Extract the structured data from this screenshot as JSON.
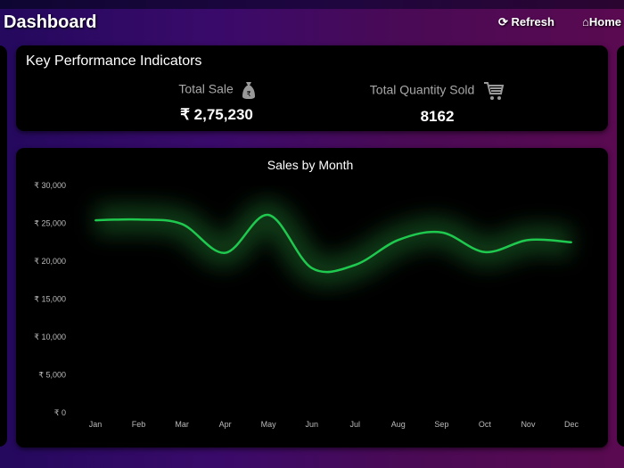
{
  "header": {
    "title": "Dashboard",
    "refresh_label": "Refresh",
    "home_label": "Home"
  },
  "kpi": {
    "title": "Key Performance Indicators",
    "items": [
      {
        "label": "Total Sale",
        "value": "₹ 2,75,230",
        "icon": "money-bag-icon"
      },
      {
        "label": "Total Quantity Sold",
        "value": "8162",
        "icon": "shopping-cart-icon"
      }
    ]
  },
  "chart_data": {
    "type": "line",
    "title": "Sales by Month",
    "smooth": true,
    "categories": [
      "Jan",
      "Feb",
      "Mar",
      "Apr",
      "May",
      "Jun",
      "Jul",
      "Aug",
      "Sep",
      "Oct",
      "Nov",
      "Dec"
    ],
    "values": [
      25400,
      25500,
      24900,
      21100,
      26100,
      19100,
      19500,
      22800,
      23800,
      21200,
      22800,
      22500
    ],
    "ylim": [
      0,
      30000
    ],
    "yticks": [
      "₹ 0",
      "₹ 5,000",
      "₹ 10,000",
      "₹ 15,000",
      "₹ 20,000",
      "₹ 25,000",
      "₹ 30,000"
    ],
    "grid": false,
    "line_color": "#1fc94f"
  }
}
